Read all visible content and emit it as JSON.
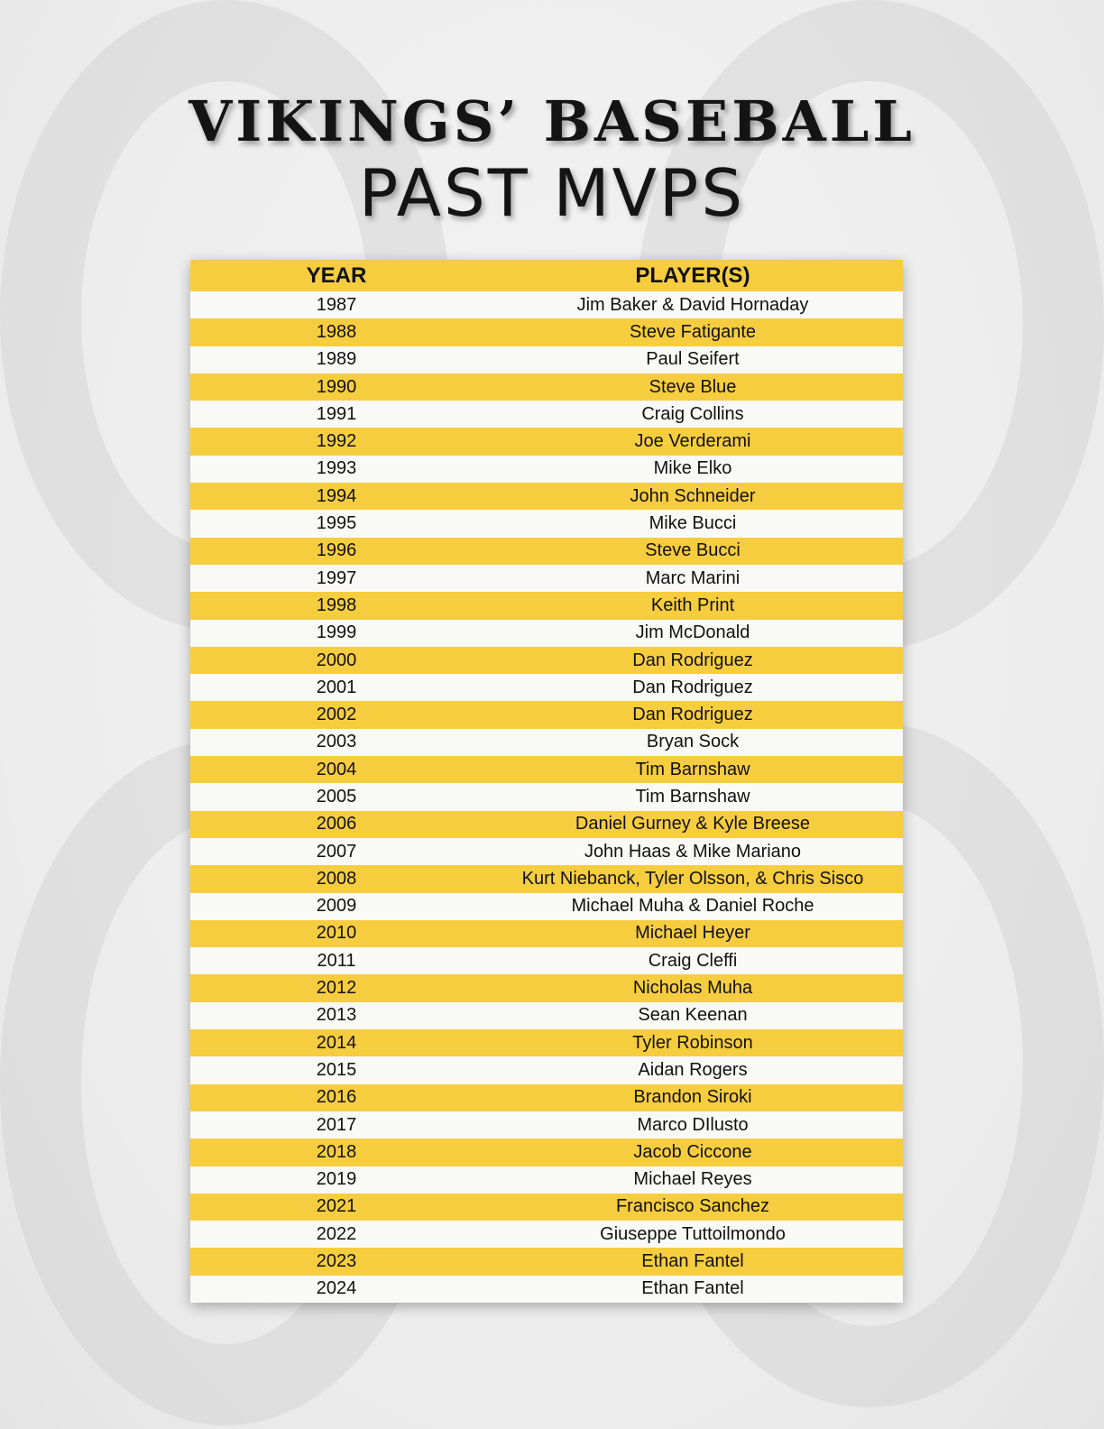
{
  "title": {
    "line1": "VIKINGS’ BASEBALL",
    "line2": "PAST MVPS"
  },
  "colors": {
    "accent": "#f7cd40",
    "row_light": "#f9f9f8",
    "text": "#111111"
  },
  "table": {
    "headers": [
      "YEAR",
      "PLAYER(S)"
    ],
    "rows": [
      [
        "1987",
        "Jim Baker & David Hornaday"
      ],
      [
        "1988",
        "Steve Fatigante"
      ],
      [
        "1989",
        "Paul Seifert"
      ],
      [
        "1990",
        "Steve Blue"
      ],
      [
        "1991",
        "Craig Collins"
      ],
      [
        "1992",
        "Joe Verderami"
      ],
      [
        "1993",
        "Mike Elko"
      ],
      [
        "1994",
        "John Schneider"
      ],
      [
        "1995",
        "Mike Bucci"
      ],
      [
        "1996",
        "Steve Bucci"
      ],
      [
        "1997",
        "Marc Marini"
      ],
      [
        "1998",
        "Keith Print"
      ],
      [
        "1999",
        "Jim McDonald"
      ],
      [
        "2000",
        "Dan Rodriguez"
      ],
      [
        "2001",
        "Dan Rodriguez"
      ],
      [
        "2002",
        "Dan Rodriguez"
      ],
      [
        "2003",
        "Bryan Sock"
      ],
      [
        "2004",
        "Tim Barnshaw"
      ],
      [
        "2005",
        "Tim Barnshaw"
      ],
      [
        "2006",
        "Daniel Gurney & Kyle Breese"
      ],
      [
        "2007",
        "John Haas & Mike Mariano"
      ],
      [
        "2008",
        "Kurt Niebanck, Tyler Olsson, & Chris Sisco"
      ],
      [
        "2009",
        "Michael Muha & Daniel Roche"
      ],
      [
        "2010",
        "Michael Heyer"
      ],
      [
        "2011",
        "Craig Cleffi"
      ],
      [
        "2012",
        "Nicholas Muha"
      ],
      [
        "2013",
        "Sean Keenan"
      ],
      [
        "2014",
        "Tyler Robinson"
      ],
      [
        "2015",
        "Aidan Rogers"
      ],
      [
        "2016",
        "Brandon Siroki"
      ],
      [
        "2017",
        "Marco DIlusto"
      ],
      [
        "2018",
        "Jacob Ciccone"
      ],
      [
        "2019",
        "Michael Reyes"
      ],
      [
        "2021",
        "Francisco Sanchez"
      ],
      [
        "2022",
        "Giuseppe Tuttoilmondo"
      ],
      [
        "2023",
        "Ethan Fantel"
      ],
      [
        "2024",
        "Ethan Fantel"
      ]
    ]
  }
}
